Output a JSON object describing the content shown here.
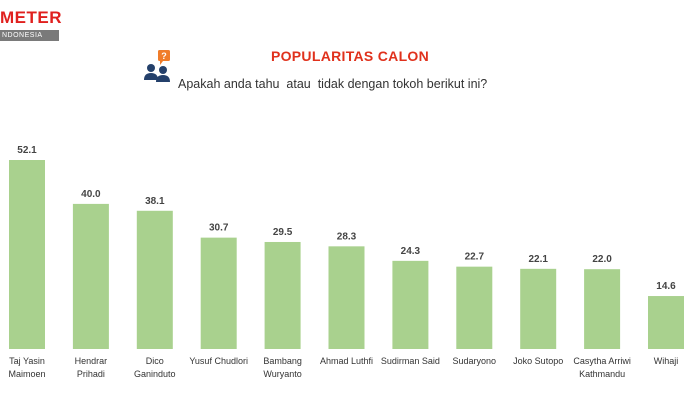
{
  "header": {
    "logo_text": "METER",
    "logo_subtext": "NDONESIA",
    "title": "POPULARITAS CALON",
    "subtitle": "Apakah anda tahu  atau  tidak dengan tokoh berikut ini?"
  },
  "colors": {
    "bar": "#a9d18e",
    "title": "#e0311c",
    "logo": "#e0201e",
    "icon_orange": "#f07c2a",
    "icon_navy": "#24406b"
  },
  "icons": {
    "question": "people-question-icon"
  },
  "chart_data": {
    "type": "bar",
    "title": "POPULARITAS CALON",
    "categories": [
      [
        "Taj Yasin",
        "Maimoen"
      ],
      [
        "Hendrar",
        "Prihadi"
      ],
      [
        "Dico",
        "Ganinduto"
      ],
      [
        "Yusuf Chudlori"
      ],
      [
        "Bambang",
        "Wuryanto"
      ],
      [
        "Ahmad Luthfi"
      ],
      [
        "Sudirman Said"
      ],
      [
        "Sudaryono"
      ],
      [
        "Joko Sutopo"
      ],
      [
        "Casytha Arriwi",
        "Kathmandu"
      ],
      [
        "Wihaji"
      ]
    ],
    "values": [
      52.1,
      40.0,
      38.1,
      30.7,
      29.5,
      28.3,
      24.3,
      22.7,
      22.1,
      22.0,
      14.6
    ],
    "value_labels": [
      "52.1",
      "40.0",
      "38.1",
      "30.7",
      "29.5",
      "28.3",
      "24.3",
      "22.7",
      "22.1",
      "22.0",
      "14.6"
    ],
    "ylim": [
      0,
      52.1
    ],
    "grid": false,
    "legend": "none"
  }
}
